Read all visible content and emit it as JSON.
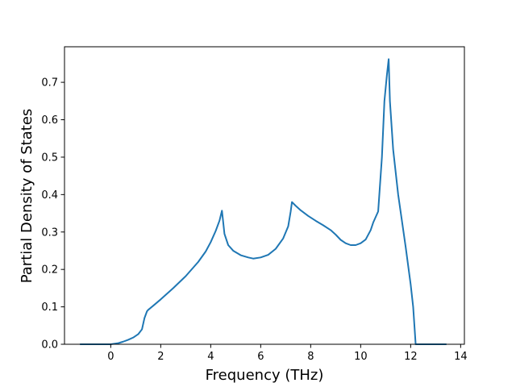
{
  "chart_data": {
    "type": "line",
    "title": "",
    "xlabel": "Frequency (THz)",
    "ylabel": "Partial Density of States",
    "xlim": [
      -1.85,
      14.15
    ],
    "ylim": [
      0.0,
      0.795
    ],
    "xticks": [
      0,
      2,
      4,
      6,
      8,
      10,
      12,
      14
    ],
    "xtick_labels": [
      "0",
      "2",
      "4",
      "6",
      "8",
      "10",
      "12",
      "14"
    ],
    "yticks": [
      0.0,
      0.1,
      0.2,
      0.3,
      0.4,
      0.5,
      0.6,
      0.7
    ],
    "ytick_labels": [
      "0.0",
      "0.1",
      "0.2",
      "0.3",
      "0.4",
      "0.5",
      "0.6",
      "0.7"
    ],
    "grid": false,
    "legend": "none",
    "series": [
      {
        "color": "#1f77b4",
        "x": [
          -1.2,
          -0.5,
          0.0,
          0.3,
          0.5,
          0.7,
          0.9,
          1.1,
          1.25,
          1.35,
          1.45,
          1.5,
          1.7,
          2.0,
          2.5,
          3.0,
          3.5,
          3.8,
          4.0,
          4.2,
          4.35,
          4.45,
          4.55,
          4.7,
          4.9,
          5.2,
          5.5,
          5.7,
          6.0,
          6.3,
          6.6,
          6.9,
          7.1,
          7.2,
          7.25,
          7.4,
          7.6,
          7.9,
          8.2,
          8.5,
          8.8,
          9.0,
          9.2,
          9.4,
          9.6,
          9.8,
          10.0,
          10.2,
          10.4,
          10.5,
          10.7,
          10.85,
          10.95,
          11.05,
          11.12,
          11.17,
          11.3,
          11.5,
          11.8,
          12.0,
          12.1,
          12.2,
          12.5,
          13.0,
          13.4
        ],
        "y": [
          0.0,
          0.0,
          0.0,
          0.003,
          0.007,
          0.012,
          0.018,
          0.027,
          0.04,
          0.07,
          0.088,
          0.092,
          0.103,
          0.12,
          0.15,
          0.182,
          0.22,
          0.248,
          0.273,
          0.303,
          0.33,
          0.357,
          0.295,
          0.265,
          0.25,
          0.238,
          0.232,
          0.229,
          0.232,
          0.239,
          0.255,
          0.283,
          0.315,
          0.355,
          0.38,
          0.37,
          0.358,
          0.343,
          0.33,
          0.318,
          0.305,
          0.293,
          0.279,
          0.27,
          0.265,
          0.265,
          0.27,
          0.28,
          0.305,
          0.325,
          0.355,
          0.5,
          0.65,
          0.72,
          0.762,
          0.65,
          0.52,
          0.4,
          0.26,
          0.16,
          0.1,
          0.0,
          0.0,
          0.0,
          0.0
        ]
      }
    ]
  }
}
